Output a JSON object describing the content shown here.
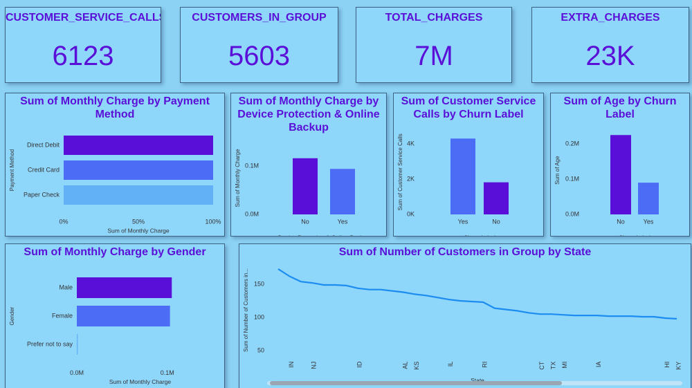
{
  "cards": [
    {
      "title": "CUSTOMER_SERVICE_CALLS",
      "value": 6123
    },
    {
      "title": "CUSTOMERS_IN_GROUP",
      "value": 5603
    },
    {
      "title": "TOTAL_CHARGES",
      "value": "7M"
    },
    {
      "title": "EXTRA_CHARGES",
      "value": "23K"
    }
  ],
  "chart_data": [
    {
      "type": "hbar",
      "title": "Sum of Monthly Charge by Payment Method",
      "categories": [
        "Direct Debit",
        "Credit Card",
        "Paper Check"
      ],
      "values": [
        100,
        100,
        100
      ],
      "colors": [
        "#5a0fd8",
        "#4c6cf6",
        "#62b1f6"
      ],
      "xlim": [
        0,
        100
      ],
      "xticks": [
        {
          "value": 0,
          "label": "0%"
        },
        {
          "value": 50,
          "label": "50%"
        },
        {
          "value": 100,
          "label": "100%"
        }
      ],
      "x_label": "Sum of Monthly Charge",
      "y_label": "Payment Method",
      "grid": false
    },
    {
      "type": "bar",
      "title": "Sum of Monthly Charge by Device Protection & Online Backup",
      "categories": [
        "No",
        "Yes"
      ],
      "values": [
        0.116,
        0.094
      ],
      "colors": [
        "#5a0fd8",
        "#4c6cf6"
      ],
      "ylim": [
        0,
        0.15
      ],
      "yticks": [
        {
          "value": 0,
          "label": "0.0M"
        },
        {
          "value": 0.1,
          "label": "0.1M"
        }
      ],
      "x_label": "Device Protection & Online Backup",
      "y_label": "Sum of Monthly Charge",
      "grid": false
    },
    {
      "type": "bar",
      "title": "Sum of Customer Service Calls by Churn Label",
      "categories": [
        "Yes",
        "No"
      ],
      "values": [
        4300,
        1820
      ],
      "colors": [
        "#4c6cf6",
        "#5a0fd8"
      ],
      "ylim": [
        0,
        4800
      ],
      "yticks": [
        {
          "value": 0,
          "label": "0K"
        },
        {
          "value": 2000,
          "label": "2K"
        },
        {
          "value": 4000,
          "label": "4K"
        }
      ],
      "x_label": "Churn Label",
      "y_label": "Sum of Customer Service Calls",
      "grid": false
    },
    {
      "type": "bar",
      "title": "Sum of Age by Churn Label",
      "categories": [
        "No",
        "Yes"
      ],
      "values": [
        0.225,
        0.09
      ],
      "colors": [
        "#5a0fd8",
        "#4c6cf6"
      ],
      "ylim": [
        0,
        0.25
      ],
      "yticks": [
        {
          "value": 0,
          "label": "0.0M"
        },
        {
          "value": 0.1,
          "label": "0.1M"
        },
        {
          "value": 0.2,
          "label": "0.2M"
        }
      ],
      "x_label": "Churn Label",
      "y_label": "Sum of Age",
      "grid": false
    },
    {
      "type": "hbar",
      "title": "Sum of Monthly Charge by Gender",
      "categories": [
        "Male",
        "Female",
        "Prefer not to say"
      ],
      "values": [
        0.105,
        0.103,
        0.001
      ],
      "colors": [
        "#5a0fd8",
        "#4c6cf6",
        "#62b1f6"
      ],
      "xlim": [
        0,
        0.14
      ],
      "xticks": [
        {
          "value": 0,
          "label": "0.0M"
        },
        {
          "value": 0.1,
          "label": "0.1M"
        }
      ],
      "x_label": "Sum of Monthly Charge",
      "y_label": "Gender",
      "grid": false
    },
    {
      "type": "line",
      "title": "Sum of Number of Customers in Group by State",
      "categories": [
        null,
        "IN",
        null,
        "NJ",
        null,
        null,
        null,
        "ID",
        null,
        null,
        null,
        "AL",
        "KS",
        null,
        null,
        "IL",
        null,
        null,
        "RI",
        null,
        null,
        null,
        null,
        "CT",
        "TX",
        "MI",
        null,
        null,
        "IA",
        null,
        null,
        null,
        null,
        null,
        "HI",
        "KY"
      ],
      "series": [
        {
          "name": "Sum of Number of Customers in Group",
          "color": "#1b8cf0",
          "values": [
            173,
            162,
            154,
            152,
            149,
            149,
            148,
            144,
            142,
            142,
            140,
            138,
            135,
            133,
            130,
            127,
            125,
            124,
            123,
            114,
            112,
            110,
            107,
            105,
            105,
            104,
            103,
            103,
            103,
            102,
            102,
            102,
            101,
            101,
            99,
            98
          ]
        }
      ],
      "ylim": [
        40,
        182
      ],
      "yticks": [
        50,
        100,
        150
      ],
      "x_label": "State",
      "y_label": "Sum of Number of Customers in...",
      "grid": false
    }
  ]
}
